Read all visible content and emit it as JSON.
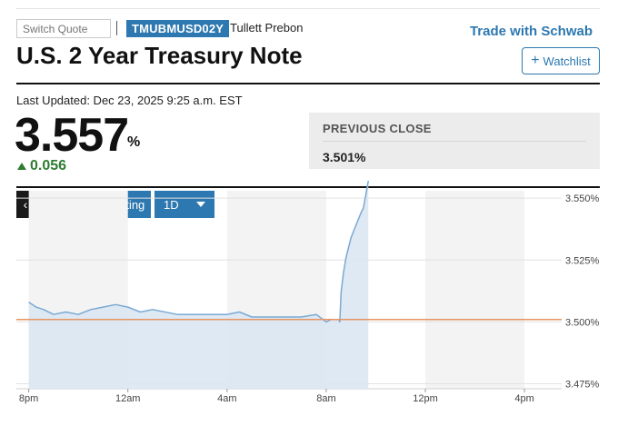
{
  "header": {
    "switch_quote_placeholder": "Switch Quote",
    "ticker": "TMUBMUSD02Y",
    "provider": "Tullett Prebon",
    "trade_link": "Trade with Schwab",
    "title": "U.S. 2 Year Treasury Note",
    "watchlist_label": "Watchlist"
  },
  "quote": {
    "last_updated": "Last Updated: Dec 23, 2025 9:25 a.m. EST",
    "price": "3.557",
    "unit": "%",
    "change": "0.056",
    "direction": "up",
    "previous_close_label": "PREVIOUS CLOSE",
    "previous_close_value": "3.501%"
  },
  "chart_controls": {
    "back_label": "‹",
    "advanced_label": "Advanced Charting",
    "range_label": "1D"
  },
  "colors": {
    "accent": "#2d78b0",
    "positive": "#2e7d32",
    "series_line": "#7aa9d3",
    "series_fill": "#dbe7f2",
    "prev_close_line": "#e8935f"
  },
  "chart_data": {
    "type": "area",
    "title": "",
    "xlabel": "",
    "ylabel": "",
    "x_tick_labels": [
      "8pm",
      "12am",
      "4am",
      "8am",
      "12pm",
      "4pm"
    ],
    "x_tick_hours": [
      0,
      4,
      8,
      12,
      16,
      20
    ],
    "x_range_hours": [
      -0.5,
      21.5
    ],
    "y_tick_labels": [
      "3.550%",
      "3.525%",
      "3.500%",
      "3.475%"
    ],
    "y_ticks": [
      3.55,
      3.525,
      3.5,
      3.475
    ],
    "ylim": [
      3.473,
      3.553
    ],
    "reference_line": 3.501,
    "shaded_bands_hours": [
      [
        0,
        4
      ],
      [
        8,
        12
      ],
      [
        16,
        20
      ]
    ],
    "grid": true,
    "series": [
      {
        "x": [
          0,
          0.3,
          0.6,
          1.0,
          1.5,
          2.0,
          2.5,
          3.0,
          3.5,
          4.0,
          4.5,
          5.0,
          6.0,
          7.0,
          8.0,
          8.5,
          9.0,
          10.0,
          11.0,
          11.6,
          12.0,
          12.2,
          12.5,
          12.55,
          12.6,
          12.7,
          12.8,
          13.0,
          13.2,
          13.4,
          13.5,
          13.7
        ],
        "values": [
          3.508,
          3.506,
          3.505,
          3.503,
          3.504,
          3.503,
          3.505,
          3.506,
          3.507,
          3.506,
          3.504,
          3.505,
          3.503,
          3.503,
          3.503,
          3.504,
          3.502,
          3.502,
          3.502,
          3.503,
          3.5,
          3.501,
          3.501,
          3.5,
          3.512,
          3.52,
          3.526,
          3.534,
          3.539,
          3.544,
          3.546,
          3.557
        ]
      }
    ]
  }
}
